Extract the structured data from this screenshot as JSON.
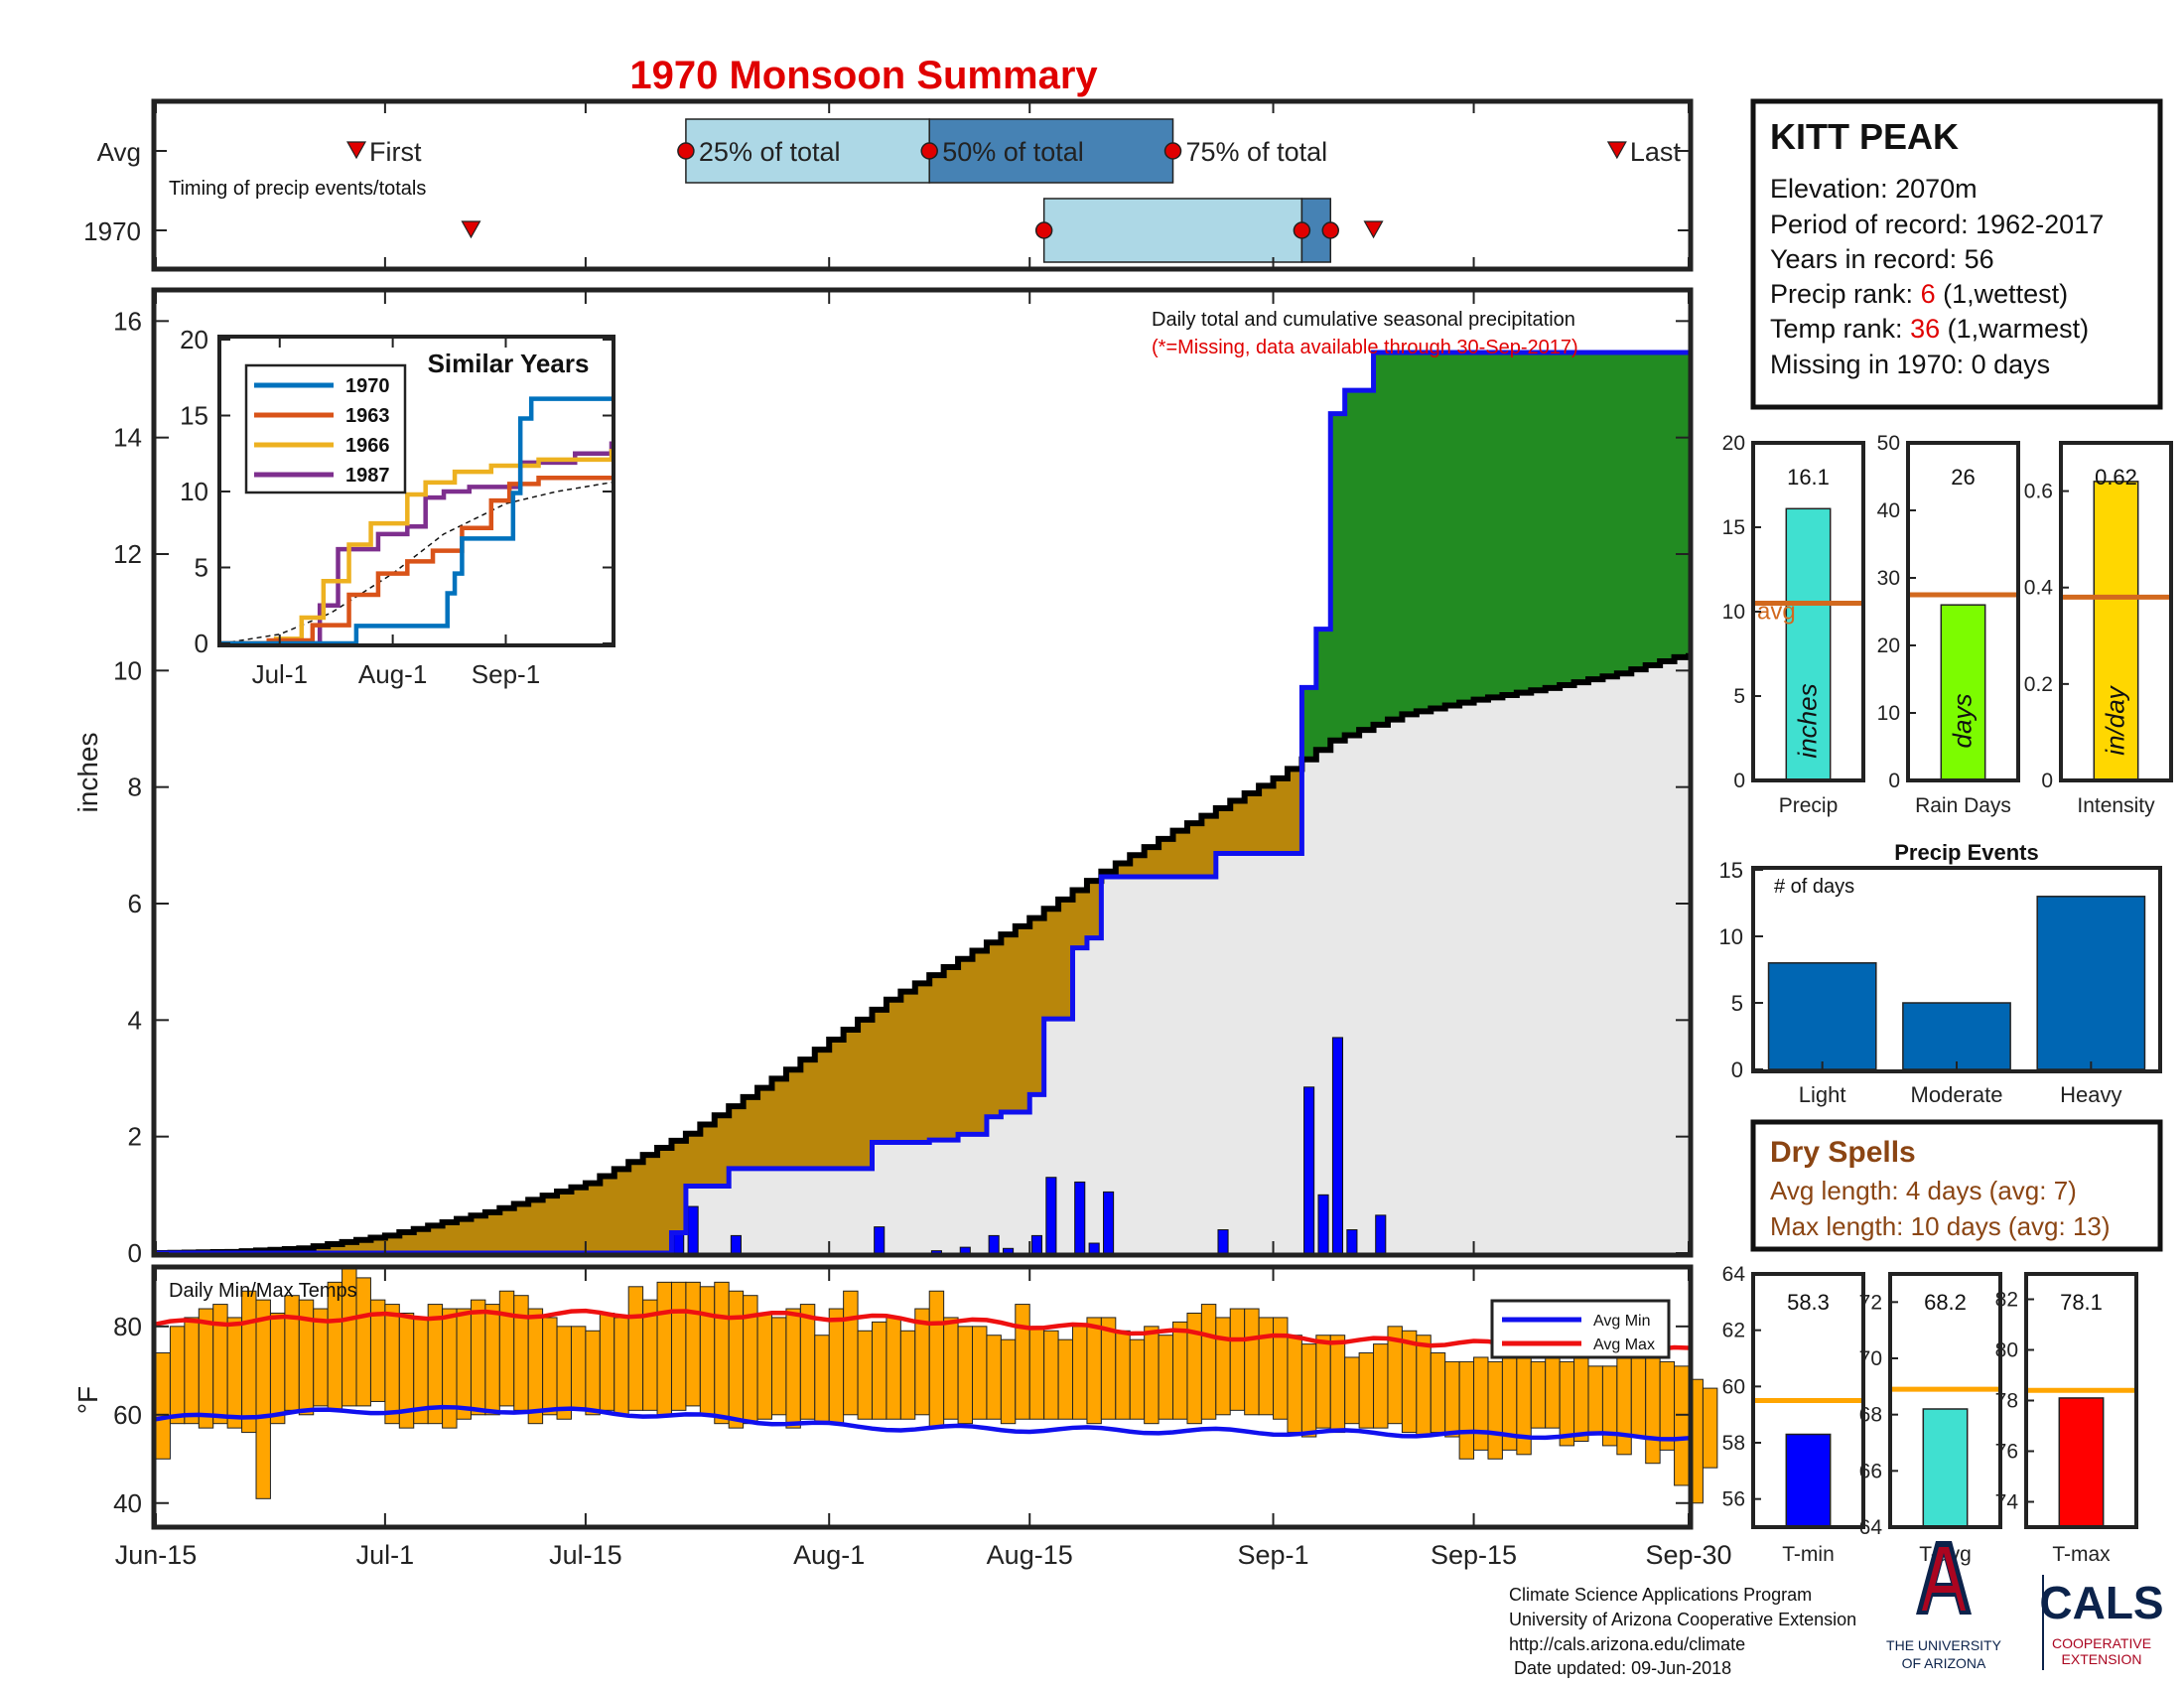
{
  "title": "1970 Monsoon Summary",
  "colors": {
    "title": "#e00000",
    "station_red": "#e00000",
    "blue_line": "#1010ee",
    "green_fill": "#228b22",
    "brown_fill": "#b8860b",
    "gray_fill": "#e8e8e8",
    "daily_bar": "#0000ff",
    "light_box": "#add8e6",
    "dark_box": "#4682b4",
    "temp_bar": "#ffa500",
    "avg_min": "#1010ee",
    "avg_max": "#ee1010",
    "precip_bar": "#40e0d0",
    "raindays_bar": "#7cfc00",
    "intensity_bar": "#ffd700",
    "avg_line": "#d2691e",
    "events_bar": "#0066b3",
    "dry_text": "#8b4513",
    "tmin_bar": "#0000ff",
    "tavg_bar": "#40e0d0",
    "tmax_bar": "#ff0000",
    "temp_avg_line": "#ffa500",
    "ua_red": "#ab0520",
    "ua_navy": "#0c234b"
  },
  "timing": {
    "row_avg": "Avg",
    "row_year": "1970",
    "first_label": "First",
    "last_label": "Last",
    "q25_label": "25% of total",
    "q50_label": "50% of total",
    "q75_label": "75% of total",
    "caption": "Timing of precip events/totals",
    "avg_dates": {
      "first": "2018-06-29",
      "q25": "2018-07-22",
      "q50": "2018-08-08",
      "q75": "2018-08-25",
      "last": "2018-09-25"
    },
    "year_dates": {
      "first": "2018-07-07",
      "q25": "2018-08-16",
      "q50": "2018-09-03",
      "q75": "2018-09-05",
      "last": "2018-09-08"
    }
  },
  "station": {
    "name": "KITT PEAK",
    "elevation": "Elevation: 2070m",
    "period": "Period of record: 1962-2017",
    "years": "Years in record: 56",
    "precip_rank_pre": "Precip rank: ",
    "precip_rank_val": "6",
    "precip_rank_post": " (1,wettest)",
    "temp_rank_pre": "Temp rank: ",
    "temp_rank_val": "36",
    "temp_rank_post": " (1,warmest)",
    "missing": "Missing in 1970: 0 days"
  },
  "footer": {
    "line1": "Climate Science Applications Program",
    "line2": "University of Arizona Cooperative Extension",
    "line3": "http://cals.arizona.edu/climate",
    "line4": " Date updated: 09-Jun-2018",
    "logo_letter": "A",
    "ua_line1": "THE UNIVERSITY",
    "ua_line2": "OF ARIZONA",
    "cals": "CALS",
    "coop1": "COOPERATIVE",
    "coop2": "EXTENSION"
  },
  "main_chart": {
    "title_line1": "Daily total and cumulative seasonal precipitation",
    "title_line2": "(*=Missing, data available through 30-Sep-2017)",
    "ylabel": "inches",
    "ylim": [
      0,
      16.5
    ],
    "yticks": [
      0,
      2,
      4,
      6,
      8,
      10,
      12,
      14,
      16
    ],
    "date_range": [
      "2018-06-15",
      "2018-09-30"
    ],
    "xtick_labels": [
      "Jun-15",
      "Jul-1",
      "Jul-15",
      "Aug-1",
      "Aug-15",
      "Sep-1",
      "Sep-15",
      "Sep-30"
    ],
    "xtick_dates": [
      "2018-06-15",
      "2018-07-01",
      "2018-07-15",
      "2018-08-01",
      "2018-08-15",
      "2018-09-01",
      "2018-09-15",
      "2018-09-30"
    ],
    "cumulative_avg_points": [
      [
        "2018-06-15",
        0
      ],
      [
        "2018-06-20",
        0.02
      ],
      [
        "2018-06-25",
        0.08
      ],
      [
        "2018-07-01",
        0.3
      ],
      [
        "2018-07-08",
        0.7
      ],
      [
        "2018-07-15",
        1.2
      ],
      [
        "2018-07-22",
        2.05
      ],
      [
        "2018-07-29",
        3.15
      ],
      [
        "2018-08-05",
        4.35
      ],
      [
        "2018-08-10",
        5.05
      ],
      [
        "2018-08-15",
        5.75
      ],
      [
        "2018-08-20",
        6.55
      ],
      [
        "2018-08-25",
        7.25
      ],
      [
        "2018-09-01",
        8.15
      ],
      [
        "2018-09-05",
        8.8
      ],
      [
        "2018-09-10",
        9.25
      ],
      [
        "2018-09-15",
        9.5
      ],
      [
        "2018-09-20",
        9.7
      ],
      [
        "2018-09-25",
        9.95
      ],
      [
        "2018-09-30",
        10.3
      ]
    ],
    "daily_precip_1970": [
      [
        "2018-07-21",
        0.35
      ],
      [
        "2018-07-22",
        0.8
      ],
      [
        "2018-07-25",
        0.3
      ],
      [
        "2018-08-04",
        0.45
      ],
      [
        "2018-08-08",
        0.04
      ],
      [
        "2018-08-10",
        0.1
      ],
      [
        "2018-08-12",
        0.3
      ],
      [
        "2018-08-13",
        0.08
      ],
      [
        "2018-08-15",
        0.3
      ],
      [
        "2018-08-16",
        1.3
      ],
      [
        "2018-08-18",
        1.22
      ],
      [
        "2018-08-19",
        0.17
      ],
      [
        "2018-08-20",
        1.05
      ],
      [
        "2018-08-28",
        0.4
      ],
      [
        "2018-09-03",
        2.85
      ],
      [
        "2018-09-04",
        1.0
      ],
      [
        "2018-09-05",
        3.7
      ],
      [
        "2018-09-06",
        0.4
      ],
      [
        "2018-09-08",
        0.65
      ]
    ]
  },
  "similar_years": {
    "title": "Similar Years",
    "ylim": [
      0,
      20
    ],
    "yticks": [
      0,
      5,
      10,
      15,
      20
    ],
    "xtick_labels": [
      "Jul-1",
      "Aug-1",
      "Sep-1"
    ],
    "xtick_dates": [
      "2018-07-01",
      "2018-08-01",
      "2018-09-01"
    ],
    "series": [
      {
        "name": "1970",
        "color": "#0072bd",
        "points": [
          [
            "2018-06-15",
            0
          ],
          [
            "2018-07-21",
            0
          ],
          [
            "2018-07-22",
            1.15
          ],
          [
            "2018-08-16",
            3.3
          ],
          [
            "2018-08-18",
            4.6
          ],
          [
            "2018-08-20",
            6.9
          ],
          [
            "2018-09-03",
            9.9
          ],
          [
            "2018-09-05",
            14.8
          ],
          [
            "2018-09-08",
            16.1
          ],
          [
            "2018-09-30",
            16.1
          ]
        ]
      },
      {
        "name": "1963",
        "color": "#d95319",
        "points": [
          [
            "2018-06-15",
            0
          ],
          [
            "2018-06-28",
            0.2
          ],
          [
            "2018-07-10",
            1.2
          ],
          [
            "2018-07-20",
            3.2
          ],
          [
            "2018-07-28",
            4.6
          ],
          [
            "2018-08-05",
            5.4
          ],
          [
            "2018-08-12",
            6.1
          ],
          [
            "2018-08-20",
            7.6
          ],
          [
            "2018-08-28",
            9.4
          ],
          [
            "2018-09-02",
            10.5
          ],
          [
            "2018-09-10",
            10.9
          ],
          [
            "2018-09-30",
            10.9
          ]
        ]
      },
      {
        "name": "1966",
        "color": "#edb120",
        "points": [
          [
            "2018-06-15",
            0
          ],
          [
            "2018-06-30",
            0.3
          ],
          [
            "2018-07-07",
            1.7
          ],
          [
            "2018-07-13",
            4.1
          ],
          [
            "2018-07-20",
            6.5
          ],
          [
            "2018-07-26",
            7.9
          ],
          [
            "2018-08-05",
            9.8
          ],
          [
            "2018-08-10",
            10.6
          ],
          [
            "2018-08-18",
            11.3
          ],
          [
            "2018-08-28",
            11.7
          ],
          [
            "2018-09-10",
            12.1
          ],
          [
            "2018-09-30",
            12.8
          ]
        ]
      },
      {
        "name": "1987",
        "color": "#7e2f8e",
        "points": [
          [
            "2018-06-15",
            0
          ],
          [
            "2018-07-08",
            0
          ],
          [
            "2018-07-12",
            2.5
          ],
          [
            "2018-07-17",
            6.2
          ],
          [
            "2018-07-28",
            7.2
          ],
          [
            "2018-08-05",
            7.7
          ],
          [
            "2018-08-10",
            9.6
          ],
          [
            "2018-08-15",
            10.0
          ],
          [
            "2018-08-22",
            10.3
          ],
          [
            "2018-09-05",
            11.9
          ],
          [
            "2018-09-20",
            12.5
          ],
          [
            "2018-09-30",
            13.3
          ]
        ]
      }
    ],
    "avg_dashed_points": [
      [
        "2018-06-15",
        0
      ],
      [
        "2018-07-01",
        0.6
      ],
      [
        "2018-07-15",
        2.0
      ],
      [
        "2018-08-01",
        4.6
      ],
      [
        "2018-08-15",
        7.2
      ],
      [
        "2018-09-01",
        9.2
      ],
      [
        "2018-09-15",
        10.0
      ],
      [
        "2018-09-30",
        10.6
      ]
    ]
  },
  "temps": {
    "title": "Daily Min/Max Temps",
    "ylabel": "°F",
    "ylim": [
      35,
      93
    ],
    "yticks": [
      40,
      60,
      80
    ],
    "legend_min": "Avg Min",
    "legend_max": "Avg Max",
    "daily_minmax_1970": [
      [
        50,
        74
      ],
      [
        58,
        80
      ],
      [
        58,
        82
      ],
      [
        57,
        84
      ],
      [
        58,
        85
      ],
      [
        57,
        82
      ],
      [
        56,
        88
      ],
      [
        41,
        86
      ],
      [
        58,
        83
      ],
      [
        61,
        87
      ],
      [
        60,
        86
      ],
      [
        62,
        84
      ],
      [
        61,
        90
      ],
      [
        62,
        93
      ],
      [
        62,
        91
      ],
      [
        63,
        86
      ],
      [
        58,
        85
      ],
      [
        57,
        83
      ],
      [
        58,
        82
      ],
      [
        58,
        85
      ],
      [
        57,
        84
      ],
      [
        59,
        84
      ],
      [
        60,
        86
      ],
      [
        60,
        85
      ],
      [
        62,
        88
      ],
      [
        61,
        87
      ],
      [
        58,
        84
      ],
      [
        60,
        82
      ],
      [
        59,
        80
      ],
      [
        61,
        80
      ],
      [
        60,
        79
      ],
      [
        61,
        83
      ],
      [
        60,
        82
      ],
      [
        61,
        89
      ],
      [
        61,
        86
      ],
      [
        60,
        90
      ],
      [
        61,
        90
      ],
      [
        62,
        90
      ],
      [
        60,
        89
      ],
      [
        58,
        90
      ],
      [
        57,
        88
      ],
      [
        58,
        87
      ],
      [
        59,
        83
      ],
      [
        60,
        82
      ],
      [
        57,
        84
      ],
      [
        59,
        85
      ],
      [
        58,
        78
      ],
      [
        58,
        84
      ],
      [
        60,
        88
      ],
      [
        59,
        79
      ],
      [
        59,
        81
      ],
      [
        59,
        82
      ],
      [
        59,
        79
      ],
      [
        60,
        84
      ],
      [
        57,
        88
      ],
      [
        59,
        82
      ],
      [
        58,
        80
      ],
      [
        59,
        80
      ],
      [
        59,
        78
      ],
      [
        58,
        77
      ],
      [
        59,
        85
      ],
      [
        59,
        80
      ],
      [
        59,
        79
      ],
      [
        59,
        77
      ],
      [
        59,
        80
      ],
      [
        58,
        82
      ],
      [
        59,
        82
      ],
      [
        59,
        79
      ],
      [
        59,
        77
      ],
      [
        58,
        80
      ],
      [
        59,
        78
      ],
      [
        59,
        81
      ],
      [
        58,
        83
      ],
      [
        59,
        85
      ],
      [
        60,
        82
      ],
      [
        61,
        84
      ],
      [
        60,
        84
      ],
      [
        60,
        82
      ],
      [
        59,
        82
      ],
      [
        56,
        78
      ],
      [
        55,
        76
      ],
      [
        57,
        78
      ],
      [
        56,
        78
      ],
      [
        58,
        73
      ],
      [
        57,
        74
      ],
      [
        57,
        76
      ],
      [
        58,
        80
      ],
      [
        56,
        79
      ],
      [
        55,
        78
      ],
      [
        56,
        74
      ],
      [
        55,
        72
      ],
      [
        50,
        72
      ],
      [
        52,
        73
      ],
      [
        50,
        72
      ],
      [
        52,
        73
      ],
      [
        51,
        74
      ],
      [
        57,
        72
      ],
      [
        57,
        76
      ],
      [
        53,
        72
      ],
      [
        54,
        73
      ],
      [
        56,
        71
      ],
      [
        53,
        71
      ],
      [
        51,
        74
      ],
      [
        55,
        75
      ],
      [
        49,
        74
      ],
      [
        52,
        72
      ],
      [
        44,
        71
      ],
      [
        40,
        68
      ],
      [
        48,
        66
      ]
    ]
  },
  "precip_bars": [
    {
      "label": "Precip",
      "value": 16.1,
      "value_text": "16.1",
      "unit": "inches",
      "avg": 10.5,
      "ylim": [
        0,
        20
      ],
      "yticks": [
        0,
        5,
        10,
        15,
        20
      ],
      "color": "#40e0d0",
      "avg_label": "avg"
    },
    {
      "label": "Rain Days",
      "value": 26,
      "value_text": "26",
      "unit": "days",
      "avg": 27.5,
      "ylim": [
        0,
        50
      ],
      "yticks": [
        0,
        10,
        20,
        30,
        40,
        50
      ],
      "color": "#7cfc00"
    },
    {
      "label": "Intensity",
      "value": 0.62,
      "value_text": "0.62",
      "unit": "in/day",
      "avg": 0.38,
      "ylim": [
        0,
        0.7
      ],
      "yticks": [
        0,
        0.2,
        0.4,
        0.6
      ],
      "color": "#ffd700"
    }
  ],
  "precip_events": {
    "title": "Precip Events",
    "ylabel": "# of days",
    "ylim": [
      0,
      15
    ],
    "yticks": [
      0,
      5,
      10,
      15
    ],
    "categories": [
      "Light",
      "Moderate",
      "Heavy"
    ],
    "values": [
      8,
      5,
      13
    ]
  },
  "dry_spells": {
    "title": "Dry Spells",
    "avg_line": "Avg length: 4 days (avg: 7)",
    "max_line": "Max length: 10 days (avg: 13)"
  },
  "temp_bars": [
    {
      "label": "T-min",
      "value": 58.3,
      "value_text": "58.3",
      "avg": 59.5,
      "ylim": [
        55,
        64
      ],
      "yticks": [
        56,
        58,
        60,
        62,
        64
      ],
      "color": "#0000ff"
    },
    {
      "label": "T-avg",
      "value": 68.2,
      "value_text": "68.2",
      "avg": 68.9,
      "ylim": [
        64,
        73
      ],
      "yticks": [
        64,
        66,
        68,
        70,
        72
      ],
      "color": "#40e0d0"
    },
    {
      "label": "T-max",
      "value": 78.1,
      "value_text": "78.1",
      "avg": 78.4,
      "ylim": [
        73,
        83
      ],
      "yticks": [
        74,
        76,
        78,
        80,
        82
      ],
      "color": "#ff0000"
    }
  ]
}
